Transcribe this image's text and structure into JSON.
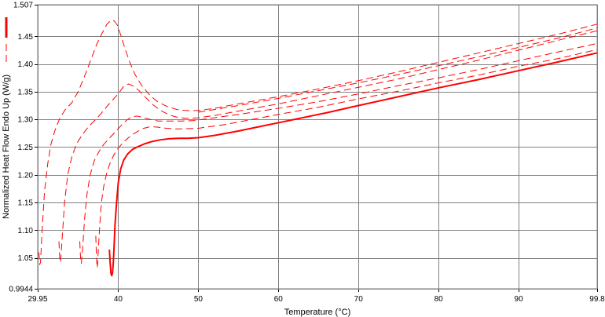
{
  "chart_data": {
    "type": "line",
    "title": "",
    "xlabel": "Temperature (°C)",
    "ylabel": "Normalized Heat Flow Endo Up (W/g)",
    "xlim": [
      29.95,
      99.8
    ],
    "ylim": [
      0.9944,
      1.507
    ],
    "x_ticks": [
      "29.95",
      "40",
      "50",
      "60",
      "70",
      "80",
      "90",
      "99.8"
    ],
    "x_tick_values": [
      29.95,
      40,
      50,
      60,
      70,
      80,
      90,
      99.8
    ],
    "y_ticks": [
      "0.9944",
      "1.05",
      "1.10",
      "1.15",
      "1.20",
      "1.25",
      "1.30",
      "1.35",
      "1.40",
      "1.45",
      "1.507"
    ],
    "y_tick_values": [
      0.9944,
      1.05,
      1.1,
      1.15,
      1.2,
      1.25,
      1.3,
      1.35,
      1.4,
      1.45,
      1.507
    ],
    "grid": true,
    "legend": "left",
    "line_color": "#ff0000",
    "series": [
      {
        "style": "solid",
        "x": [
          38.9,
          39.0,
          39.1,
          39.2,
          39.3,
          39.4,
          39.5,
          39.6,
          39.8,
          40.0,
          40.3,
          40.7,
          41.2,
          41.8,
          42.5,
          43.3,
          44.2,
          45.2,
          46.3,
          47.5,
          48.7,
          50.0,
          52,
          55,
          58,
          60,
          63,
          66,
          70,
          75,
          80,
          85,
          90,
          95,
          99.8
        ],
        "y": [
          1.065,
          1.04,
          1.022,
          1.018,
          1.024,
          1.045,
          1.075,
          1.11,
          1.15,
          1.185,
          1.21,
          1.227,
          1.238,
          1.246,
          1.251,
          1.256,
          1.26,
          1.263,
          1.265,
          1.266,
          1.266,
          1.267,
          1.271,
          1.279,
          1.288,
          1.294,
          1.303,
          1.312,
          1.325,
          1.341,
          1.357,
          1.372,
          1.388,
          1.404,
          1.42
        ]
      },
      {
        "style": "dashed",
        "x": [
          37.2,
          37.3,
          37.4,
          37.5,
          37.7,
          37.9,
          38.2,
          38.6,
          39.0,
          39.5,
          40.0,
          40.6,
          41.2,
          41.8,
          42.5,
          43.2,
          44.0,
          45.0,
          46.0,
          47.0,
          48.0,
          50,
          53,
          56,
          60,
          65,
          70,
          75,
          80,
          85,
          90,
          95,
          99.8
        ],
        "y": [
          1.09,
          1.045,
          1.032,
          1.06,
          1.11,
          1.15,
          1.18,
          1.205,
          1.222,
          1.237,
          1.248,
          1.258,
          1.266,
          1.273,
          1.279,
          1.284,
          1.287,
          1.286,
          1.284,
          1.283,
          1.283,
          1.284,
          1.29,
          1.298,
          1.309,
          1.322,
          1.337,
          1.351,
          1.366,
          1.38,
          1.396,
          1.41,
          1.426
        ]
      },
      {
        "style": "dashed",
        "x": [
          35.2,
          35.3,
          35.4,
          35.6,
          35.8,
          36.1,
          36.5,
          37.0,
          37.6,
          38.2,
          38.9,
          39.6,
          40.3,
          41.0,
          41.7,
          42.4,
          43.2,
          44.0,
          45.0,
          46.0,
          47.0,
          48.0,
          49.5,
          52,
          55,
          60,
          65,
          70,
          75,
          80,
          85,
          90,
          95,
          99.8
        ],
        "y": [
          1.08,
          1.05,
          1.04,
          1.075,
          1.12,
          1.165,
          1.2,
          1.225,
          1.242,
          1.255,
          1.266,
          1.277,
          1.288,
          1.298,
          1.305,
          1.306,
          1.303,
          1.3,
          1.297,
          1.297,
          1.297,
          1.297,
          1.298,
          1.303,
          1.309,
          1.32,
          1.332,
          1.346,
          1.361,
          1.375,
          1.39,
          1.406,
          1.422,
          1.437
        ]
      },
      {
        "style": "dashed",
        "x": [
          32.6,
          32.7,
          32.8,
          33.0,
          33.3,
          33.7,
          34.2,
          34.8,
          35.5,
          36.3,
          37.2,
          38.0,
          38.8,
          39.5,
          40.1,
          40.7,
          41.3,
          41.9,
          42.6,
          43.4,
          44.3,
          45.3,
          46.4,
          47.6,
          48.8,
          50,
          52,
          55,
          60,
          65,
          70,
          75,
          80,
          85,
          90,
          95,
          99.8
        ],
        "y": [
          1.08,
          1.048,
          1.042,
          1.085,
          1.15,
          1.2,
          1.232,
          1.256,
          1.272,
          1.287,
          1.3,
          1.313,
          1.327,
          1.338,
          1.348,
          1.36,
          1.364,
          1.36,
          1.352,
          1.34,
          1.327,
          1.316,
          1.308,
          1.303,
          1.302,
          1.303,
          1.307,
          1.315,
          1.328,
          1.343,
          1.358,
          1.373,
          1.39,
          1.407,
          1.425,
          1.443,
          1.46
        ]
      },
      {
        "style": "dashed",
        "x": [
          30.1,
          30.2,
          30.3,
          30.5,
          30.8,
          31.2,
          31.6,
          32.1,
          32.7,
          33.4,
          34.2,
          35.0,
          35.8,
          36.6,
          37.3,
          38.0,
          38.6,
          39.1,
          39.5,
          39.9,
          40.3,
          40.8,
          41.4,
          42.1,
          42.9,
          43.8,
          44.8,
          46,
          47.3,
          48.5,
          50,
          52,
          55,
          60,
          65,
          70,
          75,
          80,
          85,
          90,
          95,
          99.8
        ],
        "y": [
          1.06,
          1.038,
          1.042,
          1.1,
          1.17,
          1.22,
          1.255,
          1.28,
          1.302,
          1.318,
          1.33,
          1.35,
          1.378,
          1.408,
          1.435,
          1.456,
          1.472,
          1.479,
          1.478,
          1.47,
          1.453,
          1.43,
          1.405,
          1.381,
          1.362,
          1.346,
          1.333,
          1.324,
          1.318,
          1.316,
          1.316,
          1.32,
          1.328,
          1.341,
          1.355,
          1.37,
          1.386,
          1.403,
          1.42,
          1.437,
          1.454,
          1.472
        ]
      },
      {
        "style": "dashed",
        "x": [
          50,
          55,
          60,
          65,
          70,
          75,
          80,
          85,
          90,
          95,
          99.8
        ],
        "y": [
          1.313,
          1.325,
          1.338,
          1.352,
          1.366,
          1.381,
          1.397,
          1.413,
          1.43,
          1.447,
          1.465
        ]
      }
    ]
  }
}
